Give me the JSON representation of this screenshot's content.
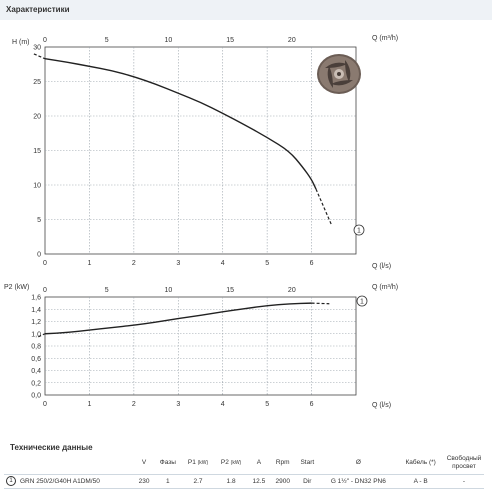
{
  "page": {
    "section_title": "Характеристики",
    "tech_title": "Технические данные"
  },
  "chart_data": [
    {
      "type": "line",
      "ylabel": "H (m)",
      "xlabel": "Q (l/s)",
      "x2label": "Q (m³/h)",
      "xlim": [
        0,
        7
      ],
      "ylim": [
        0,
        30
      ],
      "x2lim": [
        0,
        25.2
      ],
      "xticks": [
        0,
        1,
        2,
        3,
        4,
        5,
        6
      ],
      "yticks": [
        0,
        5,
        10,
        15,
        20,
        25,
        30
      ],
      "x2ticks": [
        0,
        5,
        10,
        15,
        20
      ],
      "grid": true,
      "series": [
        {
          "name": "1",
          "x": [
            0,
            0.5,
            1,
            1.5,
            2,
            2.5,
            3,
            3.5,
            4,
            4.5,
            5,
            5.5,
            5.8,
            6.0,
            6.1
          ],
          "values": [
            28.3,
            27.8,
            27.2,
            26.6,
            25.7,
            24.6,
            23.3,
            22.0,
            20.4,
            18.7,
            16.9,
            14.9,
            12.6,
            10.8,
            9.4
          ]
        }
      ],
      "dashed_segments": [
        {
          "x": [
            -0.25,
            0
          ],
          "values": [
            29.0,
            28.3
          ]
        },
        {
          "x": [
            6.1,
            6.45
          ],
          "values": [
            9.4,
            4.2
          ]
        }
      ]
    },
    {
      "type": "line",
      "ylabel": "P2 (kW)",
      "xlabel": "Q (l/s)",
      "x2label": "Q (m³/h)",
      "xlim": [
        0,
        7
      ],
      "ylim": [
        0,
        1.6
      ],
      "x2lim": [
        0,
        25.2
      ],
      "xticks": [
        0,
        1,
        2,
        3,
        4,
        5,
        6
      ],
      "yticks": [
        0,
        0.2,
        0.4,
        0.6,
        0.8,
        1.0,
        1.2,
        1.4,
        1.6
      ],
      "x2ticks": [
        0,
        5,
        10,
        15,
        20
      ],
      "grid": true,
      "series": [
        {
          "name": "1",
          "x": [
            0,
            0.5,
            1,
            1.5,
            2,
            2.5,
            3,
            3.5,
            4,
            4.5,
            5,
            5.5,
            6
          ],
          "values": [
            1.0,
            1.02,
            1.06,
            1.1,
            1.14,
            1.19,
            1.25,
            1.3,
            1.36,
            1.41,
            1.46,
            1.49,
            1.5
          ]
        }
      ],
      "dashed_segments": [
        {
          "x": [
            -0.15,
            0
          ],
          "values": [
            0.95,
            1.0
          ]
        },
        {
          "x": [
            6,
            6.4
          ],
          "values": [
            1.5,
            1.49
          ]
        }
      ]
    }
  ],
  "tech_table": {
    "headers": [
      "",
      "",
      "V",
      "Фазы",
      "P1",
      "(kW)",
      "P2",
      "(kW)",
      "A",
      "Rpm",
      "Start",
      "Ø",
      "Кабель (*)",
      "Свободный просвет"
    ],
    "row": {
      "badge": "1",
      "model": "GRN 250/2/G40H A1DM/50",
      "v": "230",
      "phases": "1",
      "p1": "2.7",
      "p2": "1.8",
      "a": "12.5",
      "rpm": "2900",
      "start": "Dir",
      "diameter": "G 1½\" - DN32 PN6",
      "cable": "A - B",
      "passage": "-"
    }
  },
  "colors": {
    "curve": "#222222",
    "grid": "#9aa3ab",
    "header_bg": "#eef2f6",
    "impeller": "#5a4d47"
  },
  "icons": {
    "impeller": "pump-impeller-icon"
  }
}
